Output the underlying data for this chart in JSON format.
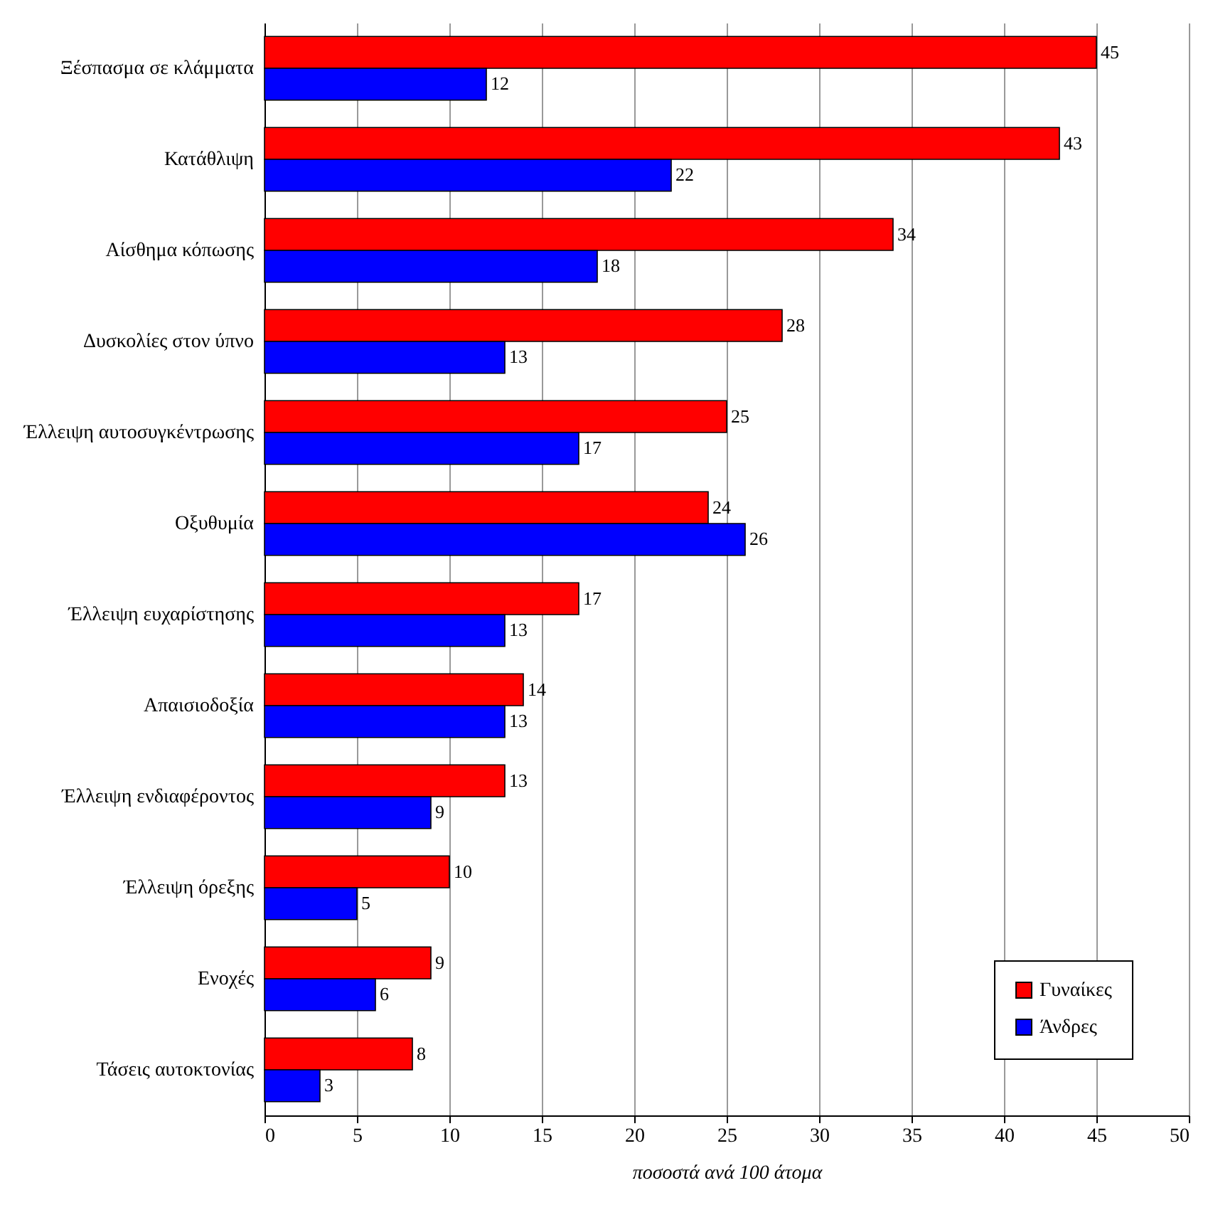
{
  "chart_data": {
    "type": "bar",
    "orientation": "horizontal",
    "xlabel": "ποσοστά ανά 100 άτομα",
    "categories": [
      "Ξέσπασμα σε κλάμματα",
      "Κατάθλιψη",
      "Αίσθημα κόπωσης",
      "Δυσκολίες στον ύπνο",
      "Έλλειψη αυτοσυγκέντρωσης",
      "Οξυθυμία",
      "Έλλειψη ευχαρίστησης",
      "Απαισιοδοξία",
      "Έλλειψη ενδιαφέροντος",
      "Έλλειψη όρεξης",
      "Ενοχές",
      "Τάσεις αυτοκτονίας"
    ],
    "series": [
      {
        "name": "Γυναίκες",
        "color": "#ff0000",
        "values": [
          45,
          43,
          34,
          28,
          25,
          24,
          17,
          14,
          13,
          10,
          9,
          8
        ]
      },
      {
        "name": "Άνδρες",
        "color": "#0000ff",
        "values": [
          12,
          22,
          18,
          13,
          17,
          26,
          13,
          13,
          9,
          5,
          6,
          3
        ]
      }
    ],
    "xlim": [
      0,
      50
    ],
    "xticks": [
      0,
      5,
      10,
      15,
      20,
      25,
      30,
      35,
      40,
      45,
      50
    ],
    "grid": "x",
    "legend": "bottom right",
    "data_labels": true
  }
}
